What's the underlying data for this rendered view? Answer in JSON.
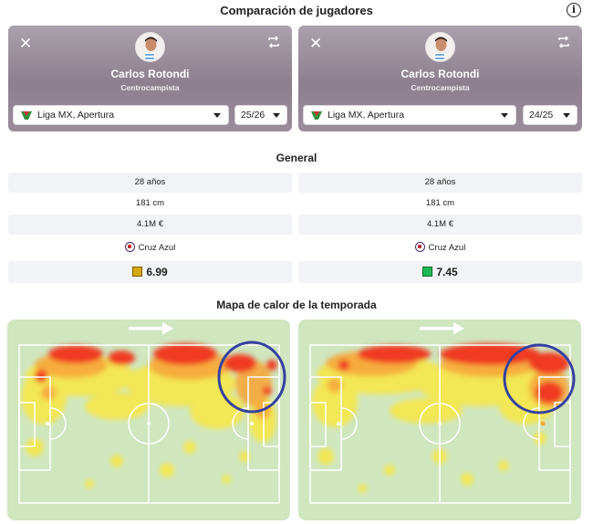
{
  "header": {
    "title": "Comparación de jugadores",
    "info_icon": "info-icon"
  },
  "players": [
    {
      "name": "Carlos Rotondi",
      "position": "Centrocampista",
      "league": "Liga MX, Apertura",
      "season": "25/26",
      "stats": {
        "age": "28 años",
        "height": "181 cm",
        "value": "4.1M €",
        "club": "Cruz Azul",
        "rating": "6.99",
        "rating_color": "#d4a70f"
      }
    },
    {
      "name": "Carlos Rotondi",
      "position": "Centrocampista",
      "league": "Liga MX, Apertura",
      "season": "24/25",
      "stats": {
        "age": "28 años",
        "height": "181 cm",
        "value": "4.1M €",
        "club": "Cruz Azul",
        "rating": "7.45",
        "rating_color": "#1db954"
      }
    }
  ],
  "sections": {
    "general": "General",
    "heatmap": "Mapa de calor de la temporada"
  },
  "colors": {
    "card_bg": "#9a8c99",
    "pitch_bg": "#cfe6bf",
    "heat_red": "#f03a22",
    "heat_yellow": "#f7e74a",
    "circle": "#3540a0"
  }
}
